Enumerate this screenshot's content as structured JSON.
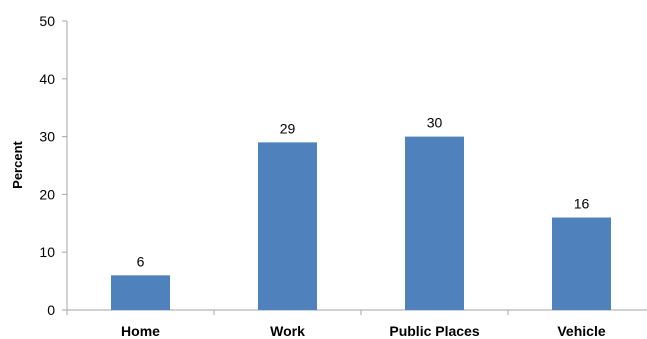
{
  "chart_data": {
    "type": "bar",
    "categories": [
      "Home",
      "Work",
      "Public Places",
      "Vehicle"
    ],
    "values": [
      6,
      29,
      30,
      16
    ],
    "data_labels": [
      "6",
      "29",
      "30",
      "16"
    ],
    "ylabel": "Percent",
    "ylim": [
      0,
      50
    ],
    "yticks": [
      0,
      10,
      20,
      30,
      40,
      50
    ],
    "grid": false,
    "legend": "none",
    "bar_color": "#4F81BD",
    "axis_color": "#A6A6A6"
  }
}
